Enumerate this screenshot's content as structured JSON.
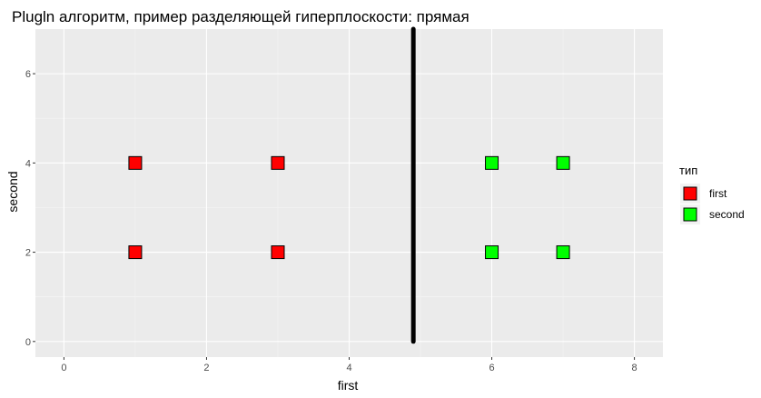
{
  "chart_data": {
    "type": "scatter",
    "title": "Plugln алгоритм, пример разделяющей гиперплоскости: прямая",
    "xlabel": "first",
    "ylabel": "second",
    "xlim": [
      -0.4,
      8.4
    ],
    "ylim": [
      -0.35,
      7.0
    ],
    "x_ticks": [
      0,
      2,
      4,
      6,
      8
    ],
    "y_ticks": [
      0,
      2,
      4,
      6
    ],
    "grid": true,
    "legend": {
      "title": "тип",
      "placement": "right",
      "entries": [
        {
          "label": "first",
          "color": "#ff0000"
        },
        {
          "label": "second",
          "color": "#00ff00"
        }
      ]
    },
    "series": [
      {
        "name": "first",
        "color": "#ff0000",
        "points": [
          {
            "x": 1,
            "y": 2
          },
          {
            "x": 1,
            "y": 4
          },
          {
            "x": 3,
            "y": 2
          },
          {
            "x": 3,
            "y": 4
          }
        ]
      },
      {
        "name": "second",
        "color": "#00ff00",
        "points": [
          {
            "x": 6,
            "y": 2
          },
          {
            "x": 6,
            "y": 4
          },
          {
            "x": 7,
            "y": 2
          },
          {
            "x": 7,
            "y": 4
          }
        ]
      }
    ],
    "separator": {
      "type": "vertical-line",
      "x": 4.9,
      "y_from": 0,
      "y_to": 7,
      "color": "#000000"
    }
  },
  "colors": {
    "panel_background": "#ebebeb",
    "grid_major": "#ffffff",
    "grid_minor": "#f5f5f5",
    "marker_border": "#000000"
  }
}
